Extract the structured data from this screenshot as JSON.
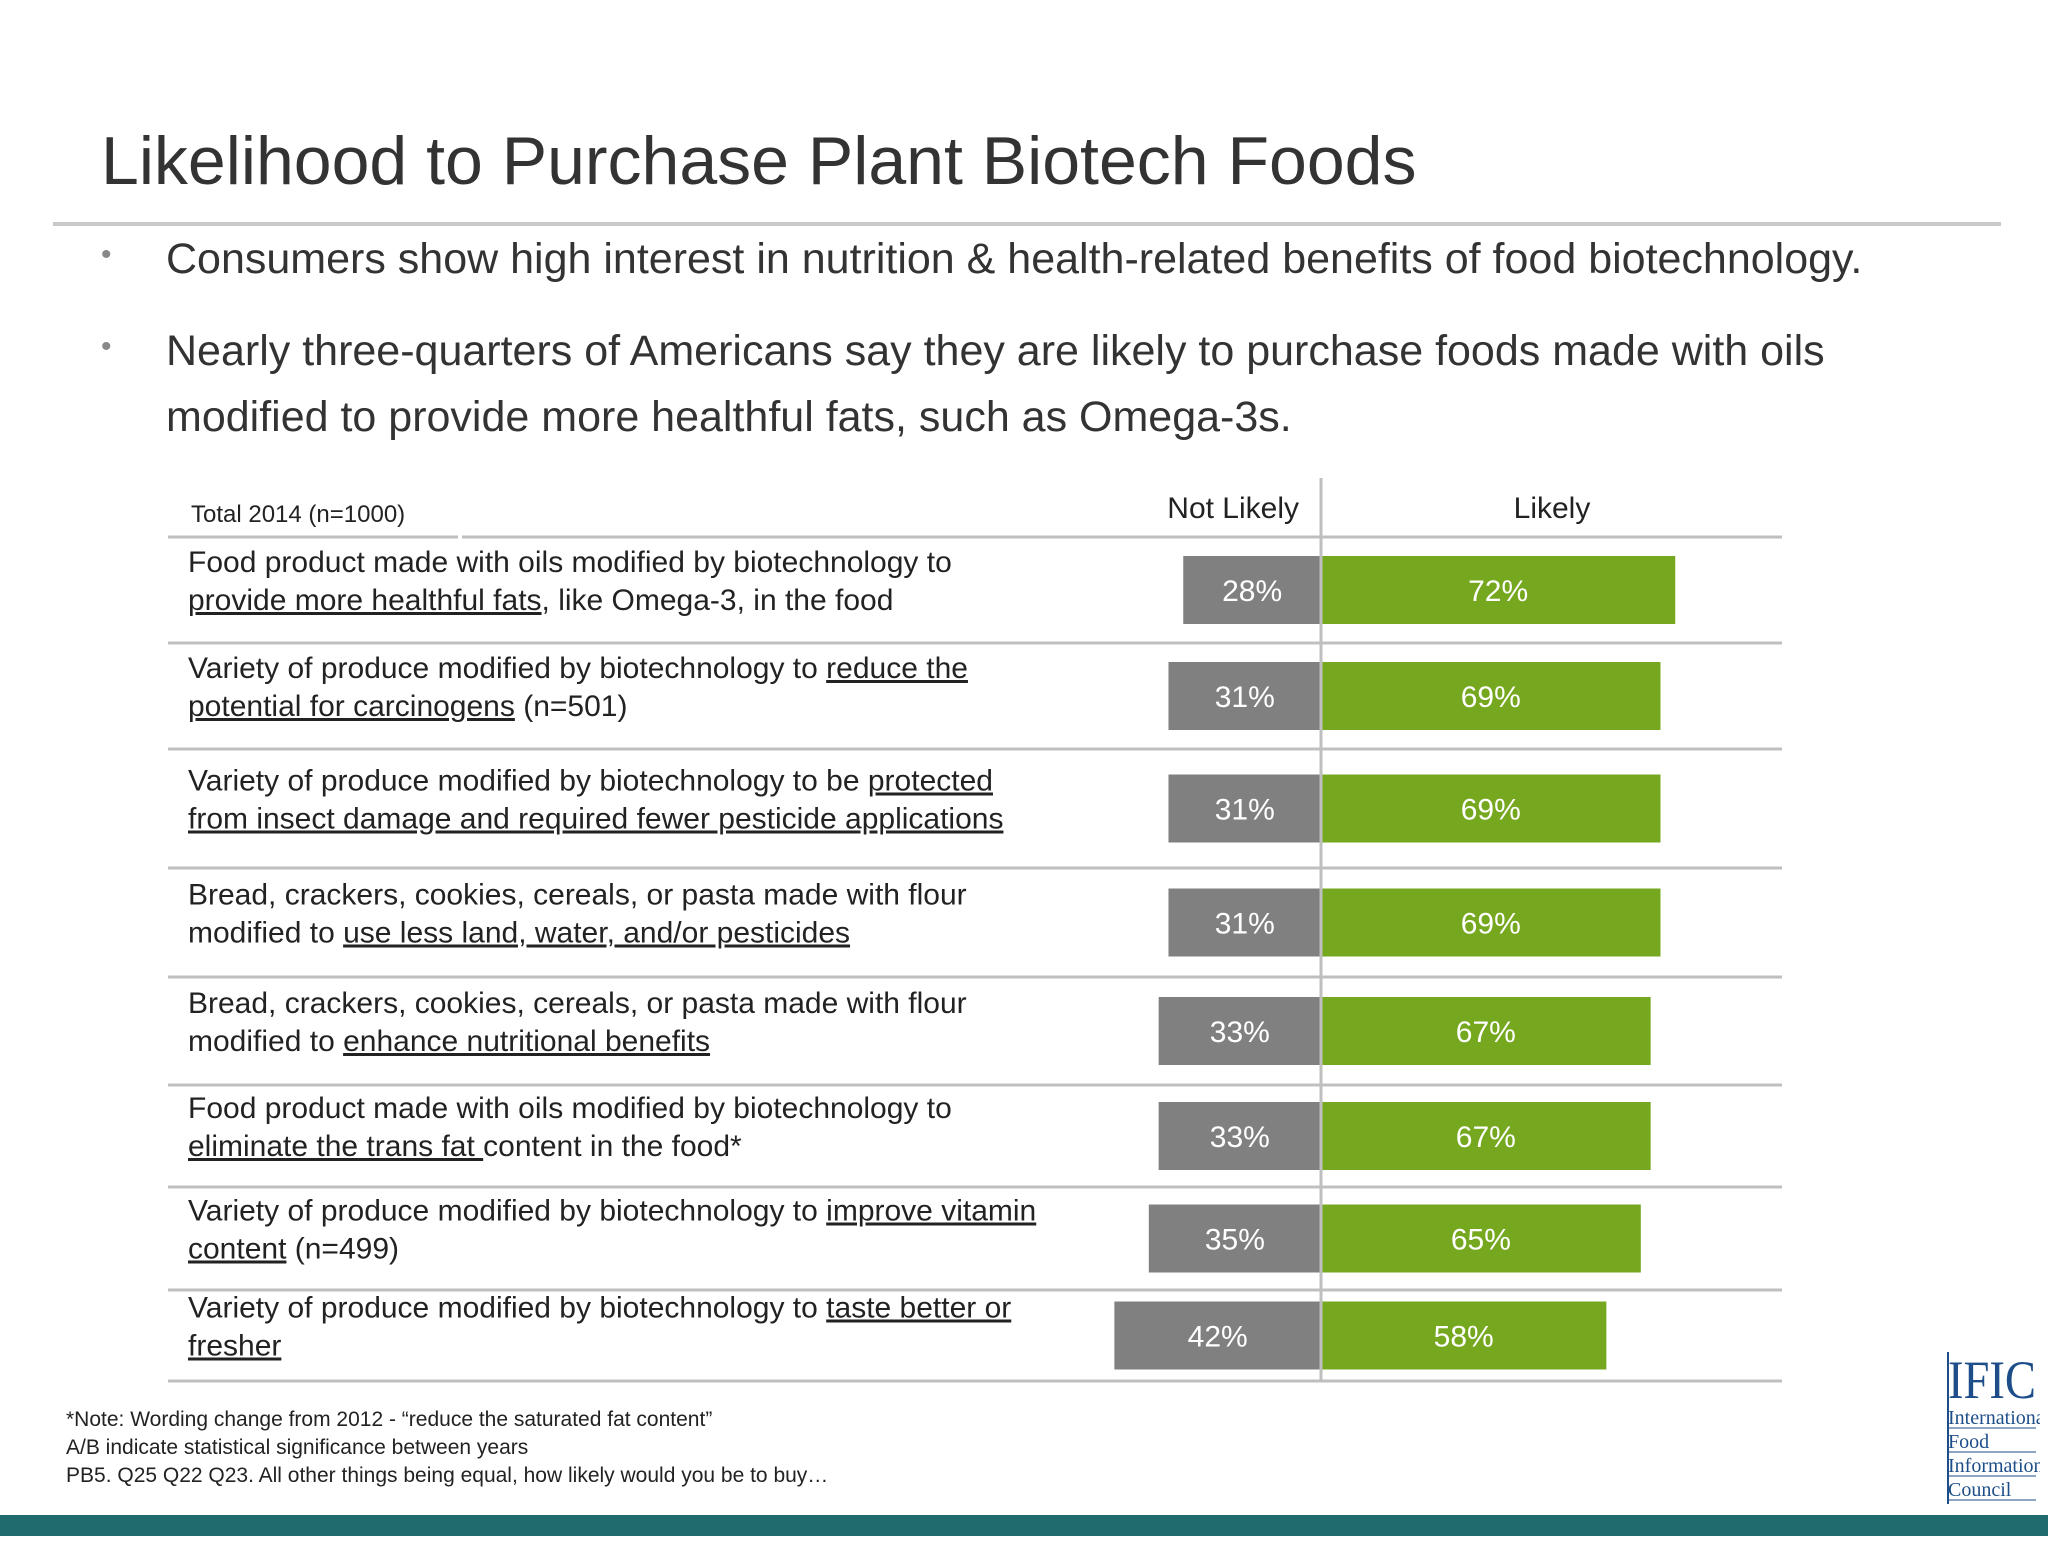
{
  "slide": {
    "title": "Likelihood to Purchase Plant Biotech Foods",
    "bullets": [
      [
        "Consumers show high interest in nutrition & health-related benefits of food biotechnology."
      ],
      [
        "Nearly three-quarters of Americans say they are likely to purchase foods made with oils",
        "modified to provide more healthful fats, such as Omega-3s."
      ]
    ],
    "footnotes": [
      "*Note: Wording change from 2012  - “reduce the saturated fat content”",
      "A/B indicate statistical significance between years",
      "PB5. Q25 Q22 Q23. All other things being equal, how likely would you be to buy…"
    ],
    "logo": {
      "mark": "IFIC",
      "lines": [
        "International",
        "Food",
        "Information",
        "Council"
      ]
    },
    "colors": {
      "not_likely": "#808080",
      "likely": "#76a81f",
      "footer_bar": "#1f6b6e",
      "logo_blue": "#1d4e89"
    }
  },
  "chart_data": {
    "type": "bar",
    "orientation": "horizontal-diverging",
    "sample_label": "Total 2014 (n=1000)",
    "columns": [
      "Not Likely",
      "Likely"
    ],
    "value_suffix": "%",
    "categories": [
      [
        [
          {
            "t": "Food product made with oils modified by biotechnology to",
            "u": false
          }
        ],
        [
          {
            "t": "provide more healthful fats",
            "u": true
          },
          {
            "t": ", like Omega-3, in the food",
            "u": false
          }
        ]
      ],
      [
        [
          {
            "t": "Variety of produce modified by biotechnology to ",
            "u": false
          },
          {
            "t": "reduce the",
            "u": true
          }
        ],
        [
          {
            "t": "potential for carcinogens",
            "u": true
          },
          {
            "t": " (n=501)",
            "u": false
          }
        ]
      ],
      [
        [
          {
            "t": "Variety of produce modified by biotechnology to be ",
            "u": false
          },
          {
            "t": "protected",
            "u": true
          }
        ],
        [
          {
            "t": "from insect damage and required fewer pesticide applications",
            "u": true
          }
        ]
      ],
      [
        [
          {
            "t": "Bread, crackers, cookies, cereals, or pasta made with flour",
            "u": false
          }
        ],
        [
          {
            "t": "modified to ",
            "u": false
          },
          {
            "t": "use less land, water, and/or pesticides",
            "u": true
          }
        ]
      ],
      [
        [
          {
            "t": "Bread, crackers, cookies, cereals, or pasta made with flour",
            "u": false
          }
        ],
        [
          {
            "t": "modified to ",
            "u": false
          },
          {
            "t": "enhance nutritional benefits",
            "u": true
          }
        ]
      ],
      [
        [
          {
            "t": "Food product made with oils modified by biotechnology to",
            "u": false
          }
        ],
        [
          {
            "t": "eliminate the trans fat ",
            "u": true
          },
          {
            "t": "content in the food*",
            "u": false
          }
        ]
      ],
      [
        [
          {
            "t": "Variety of produce modified by biotechnology to ",
            "u": false
          },
          {
            "t": "improve vitamin",
            "u": true
          }
        ],
        [
          {
            "t": "content",
            "u": true
          },
          {
            "t": " (n=499)",
            "u": false
          }
        ]
      ],
      [
        [
          {
            "t": "Variety of produce modified by biotechnology to ",
            "u": false
          },
          {
            "t": "taste better or",
            "u": true
          }
        ],
        [
          {
            "t": "fresher",
            "u": true
          }
        ]
      ]
    ],
    "series": [
      {
        "name": "Not Likely",
        "values": [
          28,
          31,
          31,
          31,
          33,
          33,
          35,
          42
        ]
      },
      {
        "name": "Likely",
        "values": [
          72,
          69,
          69,
          69,
          67,
          67,
          65,
          58
        ]
      }
    ],
    "xlim": [
      0,
      100
    ],
    "grid": false,
    "legend": "top"
  }
}
